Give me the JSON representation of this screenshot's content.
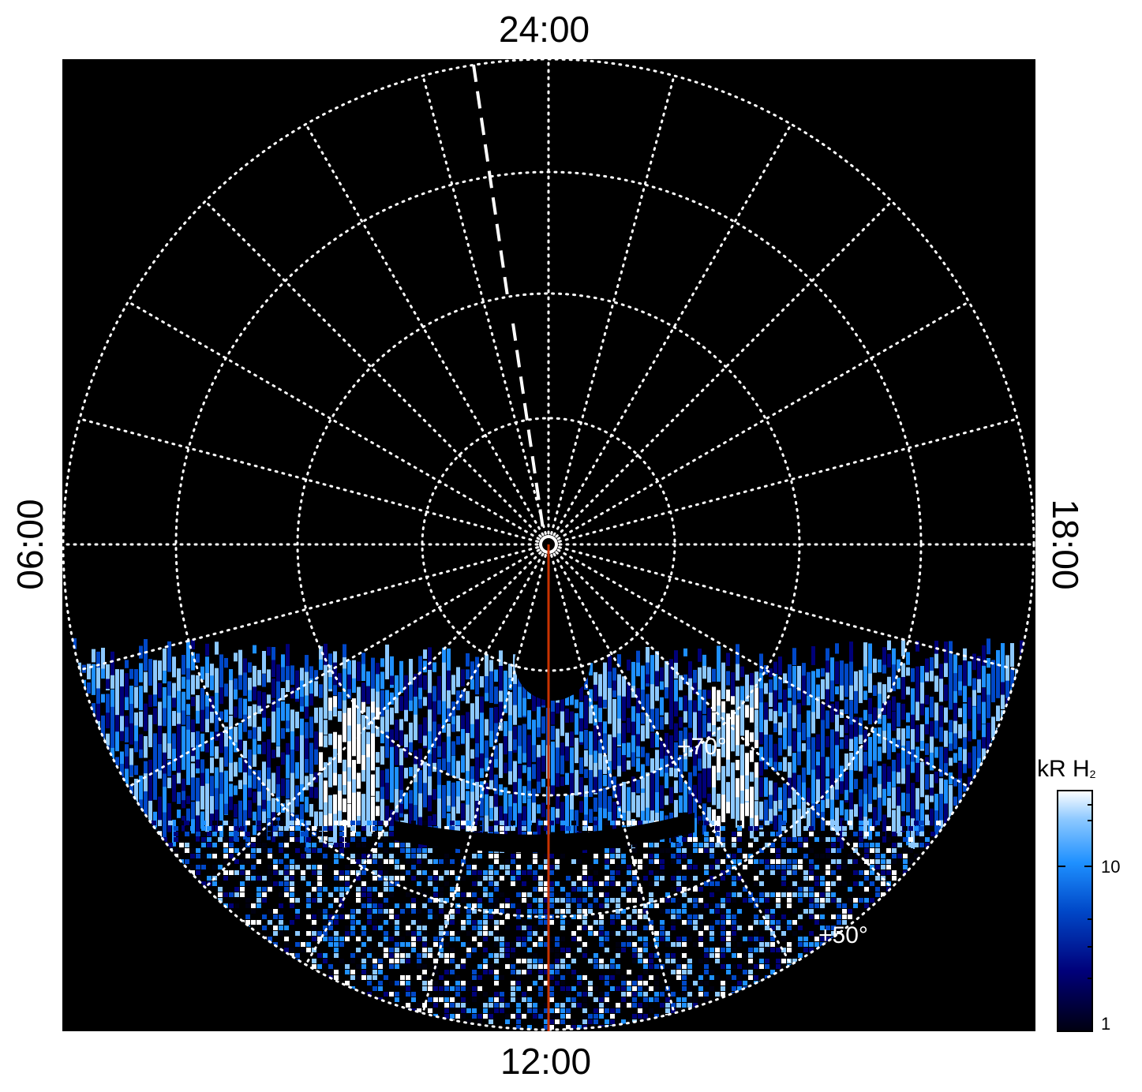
{
  "labels": {
    "top": "24:00",
    "bottom": "12:00",
    "left": "06:00",
    "right": "18:00",
    "lat_inner": "+70°",
    "lat_outer": "+50°"
  },
  "colorbar": {
    "title": "kR H",
    "title_sub": "2",
    "ticks": [
      "10",
      "1"
    ],
    "colors": [
      "#000010",
      "#00007a",
      "#0048c8",
      "#1e90ff",
      "#8cc8ff",
      "#ffffff"
    ]
  },
  "colors": {
    "background": "#000000",
    "grid": "#ffffff",
    "meridian": "#c83200"
  }
}
